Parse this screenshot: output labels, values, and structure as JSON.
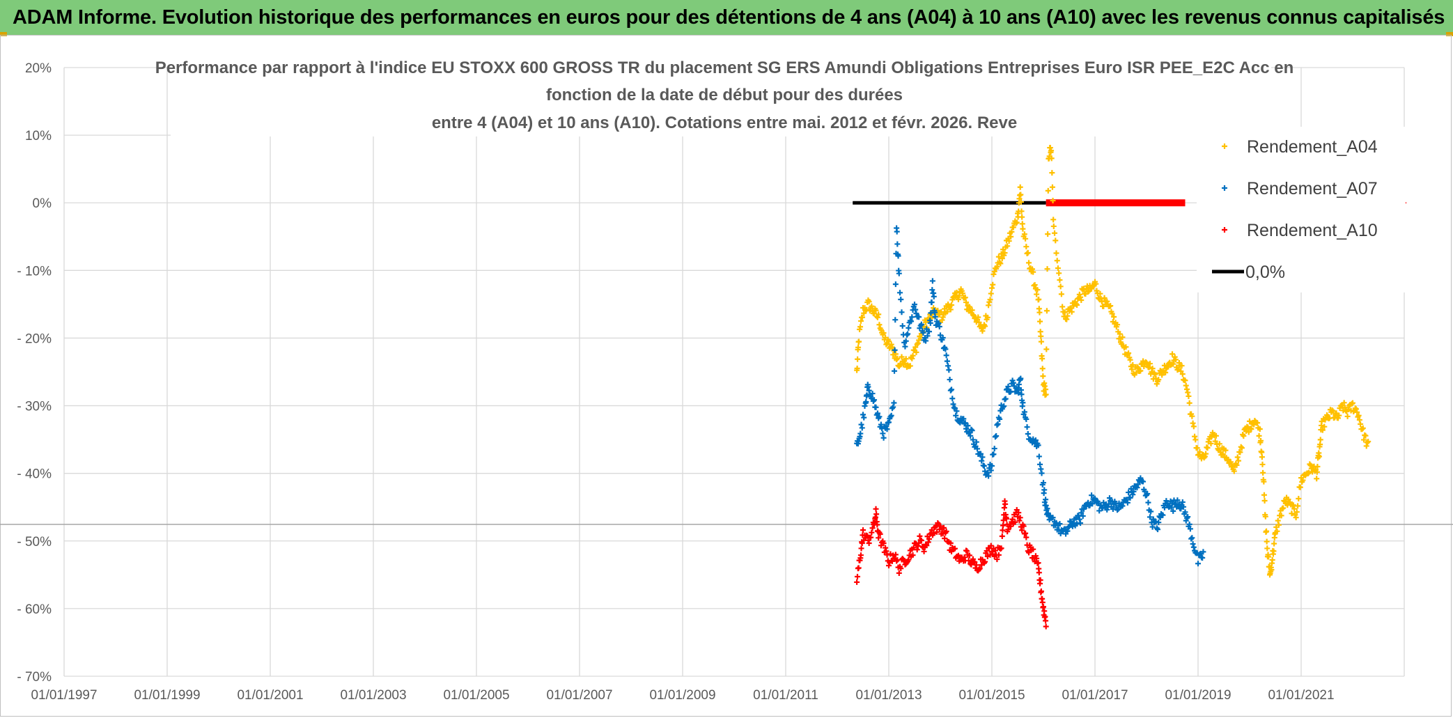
{
  "banner": {
    "title": "ADAM Informe. Evolution historique des performances en euros pour des détentions de 4 ans (A04) à 10 ans (A10) avec les revenus connus capitalisés"
  },
  "chart_data": {
    "type": "scatter",
    "title": [
      "Performance par rapport à l'indice EU STOXX 600 GROSS TR  du placement SG ERS Amundi Obligations Entreprises Euro ISR PEE_E2C Acc en",
      "fonction de la date de début pour des durées",
      "entre 4 (A04) et 10 ans (A10). Cotations entre mai. 2012 et févr. 2026. Reve"
    ],
    "xlabel": "",
    "ylabel": "",
    "x_ticks": [
      "01/01/1997",
      "01/01/1999",
      "01/01/2001",
      "01/01/2003",
      "01/01/2005",
      "01/01/2007",
      "01/01/2009",
      "01/01/2011",
      "01/01/2013",
      "01/01/2015",
      "01/01/2017",
      "01/01/2019",
      "01/01/2021"
    ],
    "y_ticks": [
      "20%",
      "10%",
      "0%",
      "- 10%",
      "- 20%",
      "- 30%",
      "- 40%",
      "- 50%",
      "- 60%",
      "- 70%"
    ],
    "xlim": [
      1997.0,
      2023.0
    ],
    "ylim": [
      -70,
      20
    ],
    "grid": true,
    "legend_position": "right",
    "colors": {
      "A04": "#ffc000",
      "A07": "#0070c0",
      "A10": "#ff0000",
      "zero": "#000000"
    },
    "series": [
      {
        "name": "Rendement_A04",
        "color": "#ffc000",
        "points": [
          [
            2012.38,
            -25
          ],
          [
            2012.42,
            -20
          ],
          [
            2012.5,
            -16
          ],
          [
            2012.6,
            -15
          ],
          [
            2012.7,
            -16
          ],
          [
            2012.8,
            -17
          ],
          [
            2012.9,
            -20
          ],
          [
            2013.0,
            -21
          ],
          [
            2013.1,
            -22
          ],
          [
            2013.2,
            -24
          ],
          [
            2013.3,
            -23
          ],
          [
            2013.4,
            -24
          ],
          [
            2013.5,
            -22
          ],
          [
            2013.6,
            -20
          ],
          [
            2013.7,
            -18
          ],
          [
            2013.8,
            -17
          ],
          [
            2013.9,
            -16
          ],
          [
            2014.0,
            -17
          ],
          [
            2014.1,
            -16
          ],
          [
            2014.2,
            -15
          ],
          [
            2014.3,
            -14
          ],
          [
            2014.4,
            -13
          ],
          [
            2014.5,
            -15
          ],
          [
            2014.6,
            -16
          ],
          [
            2014.7,
            -17
          ],
          [
            2014.8,
            -19
          ],
          [
            2014.9,
            -17
          ],
          [
            2015.0,
            -12
          ],
          [
            2015.1,
            -9
          ],
          [
            2015.2,
            -8
          ],
          [
            2015.3,
            -6
          ],
          [
            2015.4,
            -4
          ],
          [
            2015.5,
            -2
          ],
          [
            2015.55,
            2
          ],
          [
            2015.6,
            -4
          ],
          [
            2015.7,
            -8
          ],
          [
            2015.8,
            -11
          ],
          [
            2015.9,
            -14
          ],
          [
            2015.95,
            -20
          ],
          [
            2016.0,
            -27
          ],
          [
            2016.05,
            -28
          ],
          [
            2016.1,
            7
          ],
          [
            2016.15,
            8
          ],
          [
            2016.2,
            -4
          ],
          [
            2016.3,
            -10
          ],
          [
            2016.4,
            -17
          ],
          [
            2016.5,
            -16
          ],
          [
            2016.6,
            -15
          ],
          [
            2016.7,
            -14
          ],
          [
            2016.8,
            -13
          ],
          [
            2016.9,
            -13
          ],
          [
            2017.0,
            -12
          ],
          [
            2017.1,
            -14
          ],
          [
            2017.2,
            -15
          ],
          [
            2017.3,
            -16
          ],
          [
            2017.4,
            -18
          ],
          [
            2017.5,
            -20
          ],
          [
            2017.6,
            -22
          ],
          [
            2017.7,
            -24
          ],
          [
            2017.8,
            -25
          ],
          [
            2017.9,
            -24
          ],
          [
            2018.0,
            -23
          ],
          [
            2018.1,
            -25
          ],
          [
            2018.2,
            -26
          ],
          [
            2018.3,
            -25
          ],
          [
            2018.4,
            -24
          ],
          [
            2018.5,
            -23
          ],
          [
            2018.6,
            -24
          ],
          [
            2018.7,
            -25
          ],
          [
            2018.8,
            -28
          ],
          [
            2018.9,
            -33
          ],
          [
            2019.0,
            -37
          ],
          [
            2019.1,
            -38
          ],
          [
            2019.2,
            -36
          ],
          [
            2019.3,
            -34
          ],
          [
            2019.4,
            -36
          ],
          [
            2019.5,
            -37
          ],
          [
            2019.6,
            -38
          ],
          [
            2019.7,
            -40
          ],
          [
            2019.8,
            -37
          ],
          [
            2019.9,
            -34
          ],
          [
            2020.0,
            -33
          ],
          [
            2020.1,
            -32
          ],
          [
            2020.2,
            -34
          ],
          [
            2020.25,
            -38
          ],
          [
            2020.3,
            -46
          ],
          [
            2020.35,
            -52
          ],
          [
            2020.4,
            -55
          ],
          [
            2020.45,
            -52
          ],
          [
            2020.5,
            -49
          ],
          [
            2020.6,
            -46
          ],
          [
            2020.7,
            -44
          ],
          [
            2020.8,
            -45
          ],
          [
            2020.9,
            -46
          ],
          [
            2021.0,
            -41
          ],
          [
            2021.1,
            -40
          ],
          [
            2021.2,
            -39
          ],
          [
            2021.3,
            -40
          ],
          [
            2021.35,
            -37
          ],
          [
            2021.4,
            -33
          ],
          [
            2021.5,
            -32
          ],
          [
            2021.6,
            -31
          ],
          [
            2021.7,
            -32
          ],
          [
            2021.8,
            -30
          ],
          [
            2021.9,
            -31
          ],
          [
            2022.0,
            -30
          ],
          [
            2022.1,
            -31
          ],
          [
            2022.2,
            -34
          ],
          [
            2022.3,
            -36
          ]
        ]
      },
      {
        "name": "Rendement_A07",
        "color": "#0070c0",
        "points": [
          [
            2012.38,
            -36
          ],
          [
            2012.45,
            -34
          ],
          [
            2012.55,
            -30
          ],
          [
            2012.6,
            -27
          ],
          [
            2012.7,
            -29
          ],
          [
            2012.8,
            -32
          ],
          [
            2012.9,
            -34
          ],
          [
            2013.0,
            -33
          ],
          [
            2013.1,
            -30
          ],
          [
            2013.15,
            -3
          ],
          [
            2013.2,
            -11
          ],
          [
            2013.3,
            -21
          ],
          [
            2013.4,
            -18
          ],
          [
            2013.5,
            -15
          ],
          [
            2013.6,
            -18
          ],
          [
            2013.7,
            -20
          ],
          [
            2013.8,
            -18
          ],
          [
            2013.85,
            -12
          ],
          [
            2013.9,
            -17
          ],
          [
            2014.0,
            -19
          ],
          [
            2014.1,
            -22
          ],
          [
            2014.2,
            -27
          ],
          [
            2014.3,
            -31
          ],
          [
            2014.4,
            -32
          ],
          [
            2014.5,
            -33
          ],
          [
            2014.6,
            -34
          ],
          [
            2014.7,
            -36
          ],
          [
            2014.8,
            -38
          ],
          [
            2014.9,
            -40
          ],
          [
            2015.0,
            -39
          ],
          [
            2015.1,
            -33
          ],
          [
            2015.2,
            -30
          ],
          [
            2015.3,
            -28
          ],
          [
            2015.4,
            -27
          ],
          [
            2015.5,
            -28
          ],
          [
            2015.55,
            -26
          ],
          [
            2015.6,
            -30
          ],
          [
            2015.7,
            -34
          ],
          [
            2015.8,
            -35
          ],
          [
            2015.9,
            -36
          ],
          [
            2016.0,
            -42
          ],
          [
            2016.05,
            -45
          ],
          [
            2016.1,
            -47
          ],
          [
            2016.2,
            -47
          ],
          [
            2016.3,
            -48
          ],
          [
            2016.4,
            -49
          ],
          [
            2016.5,
            -48
          ],
          [
            2016.6,
            -47
          ],
          [
            2016.7,
            -47
          ],
          [
            2016.8,
            -45
          ],
          [
            2016.9,
            -44
          ],
          [
            2017.0,
            -44
          ],
          [
            2017.1,
            -45
          ],
          [
            2017.2,
            -45
          ],
          [
            2017.3,
            -44
          ],
          [
            2017.4,
            -45
          ],
          [
            2017.5,
            -45
          ],
          [
            2017.6,
            -44
          ],
          [
            2017.7,
            -43
          ],
          [
            2017.8,
            -42
          ],
          [
            2017.9,
            -41
          ],
          [
            2018.0,
            -43
          ],
          [
            2018.1,
            -47
          ],
          [
            2018.2,
            -48
          ],
          [
            2018.3,
            -46
          ],
          [
            2018.4,
            -44
          ],
          [
            2018.5,
            -45
          ],
          [
            2018.6,
            -44
          ],
          [
            2018.7,
            -45
          ],
          [
            2018.8,
            -47
          ],
          [
            2018.9,
            -50
          ],
          [
            2019.0,
            -53
          ],
          [
            2019.1,
            -52
          ]
        ]
      },
      {
        "name": "Rendement_A10",
        "color": "#ff0000",
        "points": [
          [
            2012.38,
            -56
          ],
          [
            2012.45,
            -52
          ],
          [
            2012.5,
            -49
          ],
          [
            2012.6,
            -50
          ],
          [
            2012.7,
            -48
          ],
          [
            2012.75,
            -46
          ],
          [
            2012.8,
            -49
          ],
          [
            2012.9,
            -51
          ],
          [
            2013.0,
            -53
          ],
          [
            2013.1,
            -52
          ],
          [
            2013.2,
            -54
          ],
          [
            2013.3,
            -53
          ],
          [
            2013.4,
            -52
          ],
          [
            2013.5,
            -51
          ],
          [
            2013.6,
            -50
          ],
          [
            2013.7,
            -51
          ],
          [
            2013.8,
            -49
          ],
          [
            2013.9,
            -48
          ],
          [
            2014.0,
            -48
          ],
          [
            2014.1,
            -49
          ],
          [
            2014.2,
            -51
          ],
          [
            2014.3,
            -52
          ],
          [
            2014.4,
            -53
          ],
          [
            2014.5,
            -52
          ],
          [
            2014.6,
            -53
          ],
          [
            2014.7,
            -54
          ],
          [
            2014.8,
            -53
          ],
          [
            2014.9,
            -52
          ],
          [
            2015.0,
            -51
          ],
          [
            2015.1,
            -52
          ],
          [
            2015.2,
            -50
          ],
          [
            2015.25,
            -44
          ],
          [
            2015.3,
            -48
          ],
          [
            2015.4,
            -47
          ],
          [
            2015.5,
            -46
          ],
          [
            2015.6,
            -48
          ],
          [
            2015.7,
            -51
          ],
          [
            2015.8,
            -52
          ],
          [
            2015.9,
            -54
          ],
          [
            2015.95,
            -57
          ],
          [
            2016.0,
            -60
          ],
          [
            2016.05,
            -62
          ]
        ]
      }
    ],
    "reference_lines": [
      {
        "name": "0,0%",
        "value": 0,
        "color": "#000000",
        "x": [
          2012.3,
          2016.05
        ]
      },
      {
        "name": "zero_red",
        "value": 0,
        "color": "#ff0000",
        "x": [
          2016.05,
          2018.75
        ]
      }
    ],
    "legend": [
      {
        "label": "Rendement_A04",
        "color": "#ffc000",
        "marker": "plus"
      },
      {
        "label": "Rendement_A07",
        "color": "#0070c0",
        "marker": "plus"
      },
      {
        "label": "Rendement_A10",
        "color": "#ff0000",
        "marker": "plus"
      },
      {
        "label": "0,0%",
        "color": "#000000",
        "marker": "line"
      }
    ]
  }
}
